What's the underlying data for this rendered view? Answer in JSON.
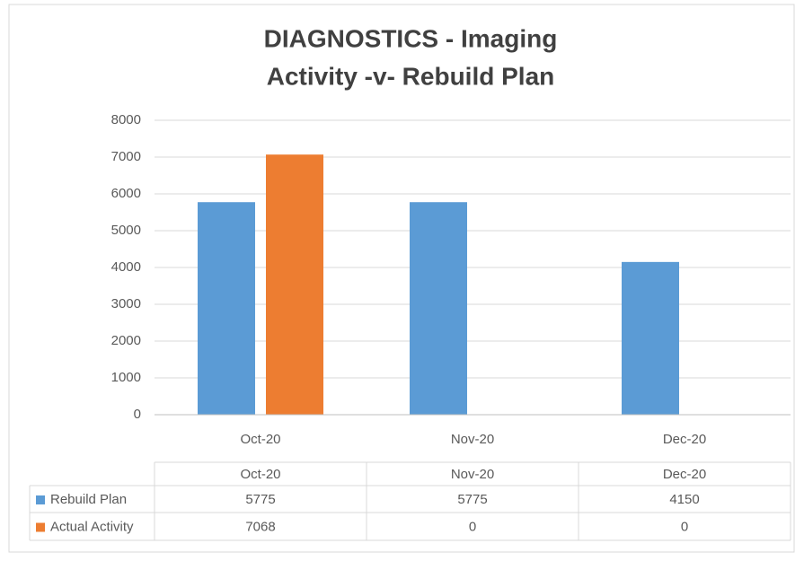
{
  "chart_data": {
    "type": "bar",
    "title": [
      "DIAGNOSTICS - Imaging",
      "Activity -v- Rebuild Plan"
    ],
    "categories": [
      "Oct-20",
      "Nov-20",
      "Dec-20"
    ],
    "series": [
      {
        "name": "Rebuild Plan",
        "color": "#5b9bd5",
        "values": [
          5775,
          5775,
          4150
        ]
      },
      {
        "name": "Actual Activity",
        "color": "#ed7d31",
        "values": [
          7068,
          0,
          0
        ]
      }
    ],
    "ylim": [
      0,
      8000
    ],
    "yticks": [
      0,
      1000,
      2000,
      3000,
      4000,
      5000,
      6000,
      7000,
      8000
    ],
    "grid": true
  }
}
